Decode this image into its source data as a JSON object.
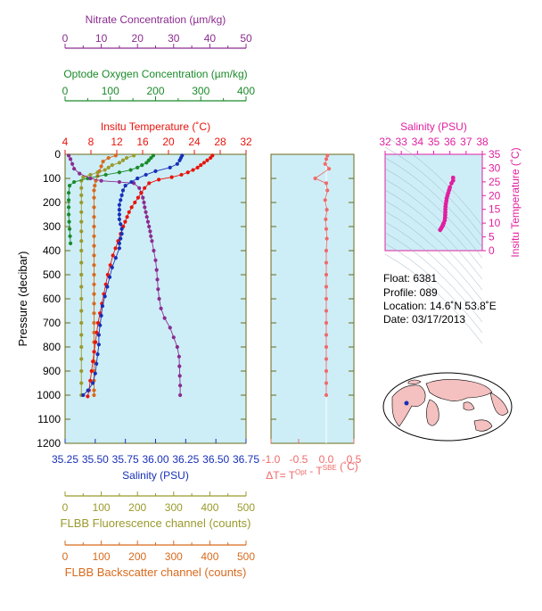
{
  "colors": {
    "nitrate": "#8b2c8f",
    "oxygen": "#1a8a2a",
    "temperature": "#e8140c",
    "salinity": "#1830b8",
    "fluorescence": "#9a9a2c",
    "backscatter": "#d86a1c",
    "delta": "#f06a6a",
    "profile_salinity": "#e020a0",
    "plot_bg": "#cdeef7",
    "frame": "#6b6b1a",
    "ocean": "#ffffff",
    "land": "#f4c0c0"
  },
  "axes": {
    "nitrate": {
      "title": "Nitrate Concentration (µm/kg)",
      "ticks": [
        "0",
        "10",
        "20",
        "30",
        "40",
        "50"
      ]
    },
    "oxygen": {
      "title": "Optode Oxygen Concentration (µm/kg)",
      "ticks": [
        "0",
        "100",
        "200",
        "300",
        "400"
      ]
    },
    "temperature": {
      "title": "Insitu Temperature (˚C)",
      "ticks": [
        "4",
        "8",
        "12",
        "16",
        "20",
        "24",
        "28",
        "32"
      ]
    },
    "pressure": {
      "title": "Pressure (decibar)",
      "ticks": [
        "0",
        "100",
        "200",
        "300",
        "400",
        "500",
        "600",
        "700",
        "800",
        "900",
        "1000",
        "1100",
        "1200"
      ]
    },
    "salinity": {
      "title": "Salinity (PSU)",
      "ticks": [
        "35.25",
        "35.50",
        "35.75",
        "36.00",
        "36.25",
        "36.50",
        "36.75"
      ]
    },
    "delta": {
      "title_main": "ΔT= T",
      "sup1": "Opt",
      "mid": " - T",
      "sup2": "SBE",
      "tail": " (˚C)",
      "ticks": [
        "-1.0",
        "-0.5",
        "0.0",
        "0.5"
      ]
    },
    "fluorescence": {
      "title": "FLBB Fluorescence channel (counts)",
      "ticks": [
        "0",
        "100",
        "200",
        "300",
        "400",
        "500"
      ]
    },
    "backscatter": {
      "title": "FLBB Backscatter channel (counts)",
      "ticks": [
        "0",
        "100",
        "200",
        "300",
        "400",
        "500"
      ]
    },
    "ts_salinity": {
      "title": "Salinity (PSU)",
      "ticks": [
        "32",
        "33",
        "34",
        "35",
        "36",
        "37",
        "38"
      ]
    },
    "ts_temperature": {
      "title": "Insitu Temperature (˚C)",
      "ticks": [
        "0",
        "5",
        "10",
        "15",
        "20",
        "25",
        "30",
        "35"
      ]
    }
  },
  "info": {
    "float": "Float:  6381",
    "profile": "Profile:  089",
    "location": "Location:  14.6˚N  53.8˚E",
    "date": "Date:  03/17/2013"
  },
  "chart_data": {
    "type": "scatter",
    "pressure_range": [
      0,
      1200
    ],
    "series": [
      {
        "name": "Insitu Temperature",
        "axis": "temperature",
        "range": [
          4,
          32
        ],
        "points": [
          [
            26.8,
            5
          ],
          [
            26.5,
            15
          ],
          [
            26.0,
            25
          ],
          [
            25.5,
            35
          ],
          [
            25.0,
            45
          ],
          [
            24.5,
            55
          ],
          [
            23.8,
            65
          ],
          [
            23.0,
            75
          ],
          [
            22.0,
            85
          ],
          [
            20.5,
            95
          ],
          [
            18.5,
            105
          ],
          [
            17.0,
            120
          ],
          [
            16.3,
            140
          ],
          [
            15.8,
            160
          ],
          [
            15.3,
            180
          ],
          [
            14.8,
            200
          ],
          [
            14.3,
            220
          ],
          [
            13.9,
            240
          ],
          [
            13.6,
            260
          ],
          [
            13.3,
            280
          ],
          [
            13.0,
            300
          ],
          [
            12.6,
            330
          ],
          [
            12.2,
            360
          ],
          [
            11.8,
            390
          ],
          [
            11.4,
            420
          ],
          [
            11.0,
            460
          ],
          [
            10.6,
            500
          ],
          [
            10.3,
            540
          ],
          [
            10.0,
            580
          ],
          [
            9.7,
            620
          ],
          [
            9.4,
            660
          ],
          [
            9.1,
            700
          ],
          [
            8.9,
            740
          ],
          [
            8.7,
            780
          ],
          [
            8.5,
            820
          ],
          [
            8.3,
            860
          ],
          [
            8.1,
            900
          ],
          [
            7.9,
            940
          ],
          [
            7.7,
            980
          ],
          [
            7.5,
            1005
          ]
        ]
      },
      {
        "name": "Salinity",
        "axis": "salinity",
        "range": [
          35.25,
          36.75
        ],
        "points": [
          [
            36.22,
            5
          ],
          [
            36.21,
            15
          ],
          [
            36.2,
            25
          ],
          [
            36.18,
            40
          ],
          [
            36.12,
            55
          ],
          [
            36.0,
            70
          ],
          [
            35.92,
            85
          ],
          [
            35.85,
            100
          ],
          [
            35.8,
            115
          ],
          [
            35.75,
            130
          ],
          [
            35.73,
            150
          ],
          [
            35.72,
            170
          ],
          [
            35.71,
            190
          ],
          [
            35.7,
            210
          ],
          [
            35.7,
            230
          ],
          [
            35.7,
            250
          ],
          [
            35.7,
            270
          ],
          [
            35.71,
            290
          ],
          [
            35.72,
            310
          ],
          [
            35.72,
            330
          ],
          [
            35.71,
            350
          ],
          [
            35.7,
            370
          ],
          [
            35.7,
            390
          ],
          [
            35.67,
            430
          ],
          [
            35.64,
            470
          ],
          [
            35.62,
            510
          ],
          [
            35.6,
            550
          ],
          [
            35.58,
            590
          ],
          [
            35.56,
            630
          ],
          [
            35.55,
            670
          ],
          [
            35.54,
            710
          ],
          [
            35.53,
            750
          ],
          [
            35.53,
            790
          ],
          [
            35.52,
            830
          ],
          [
            35.51,
            870
          ],
          [
            35.5,
            910
          ],
          [
            35.48,
            950
          ],
          [
            35.44,
            980
          ],
          [
            35.4,
            1000
          ]
        ]
      },
      {
        "name": "Nitrate",
        "axis": "nitrate",
        "range": [
          0,
          50
        ],
        "points": [
          [
            1,
            5
          ],
          [
            1.5,
            20
          ],
          [
            2,
            40
          ],
          [
            2.5,
            60
          ],
          [
            4,
            80
          ],
          [
            7,
            100
          ],
          [
            10,
            110
          ],
          [
            15,
            115
          ],
          [
            19,
            120
          ],
          [
            20.5,
            140
          ],
          [
            21,
            160
          ],
          [
            21.5,
            180
          ],
          [
            21.8,
            200
          ],
          [
            22,
            220
          ],
          [
            22.3,
            240
          ],
          [
            22.6,
            260
          ],
          [
            22.9,
            280
          ],
          [
            23.2,
            300
          ],
          [
            23.5,
            320
          ],
          [
            23.7,
            340
          ],
          [
            24,
            360
          ],
          [
            24.5,
            400
          ],
          [
            25,
            440
          ],
          [
            25.3,
            480
          ],
          [
            25.5,
            520
          ],
          [
            25.7,
            560
          ],
          [
            26,
            600
          ],
          [
            26.5,
            640
          ],
          [
            27.5,
            680
          ],
          [
            29,
            720
          ],
          [
            30,
            760
          ],
          [
            31,
            800
          ],
          [
            31.5,
            840
          ],
          [
            31.6,
            880
          ],
          [
            31.7,
            920
          ],
          [
            31.8,
            960
          ],
          [
            31.8,
            1000
          ]
        ]
      },
      {
        "name": "Oxygen",
        "axis": "oxygen",
        "range": [
          0,
          400
        ],
        "points": [
          [
            195,
            5
          ],
          [
            190,
            15
          ],
          [
            185,
            25
          ],
          [
            180,
            35
          ],
          [
            170,
            45
          ],
          [
            160,
            55
          ],
          [
            145,
            65
          ],
          [
            120,
            75
          ],
          [
            90,
            85
          ],
          [
            50,
            100
          ],
          [
            20,
            115
          ],
          [
            10,
            130
          ],
          [
            8,
            160
          ],
          [
            8,
            190
          ],
          [
            8,
            220
          ],
          [
            8,
            250
          ],
          [
            9,
            280
          ],
          [
            10,
            310
          ],
          [
            11,
            340
          ],
          [
            12,
            370
          ]
        ]
      },
      {
        "name": "Fluorescence",
        "axis": "fluorescence",
        "range": [
          0,
          500
        ],
        "points": [
          [
            190,
            5
          ],
          [
            170,
            15
          ],
          [
            160,
            25
          ],
          [
            150,
            35
          ],
          [
            130,
            45
          ],
          [
            120,
            55
          ],
          [
            110,
            65
          ],
          [
            90,
            75
          ],
          [
            70,
            85
          ],
          [
            50,
            95
          ],
          [
            45,
            110
          ],
          [
            45,
            140
          ],
          [
            45,
            170
          ],
          [
            45,
            200
          ],
          [
            45,
            240
          ],
          [
            45,
            280
          ],
          [
            45,
            320
          ],
          [
            45,
            360
          ],
          [
            45,
            400
          ],
          [
            45,
            450
          ],
          [
            45,
            500
          ],
          [
            45,
            550
          ],
          [
            45,
            600
          ],
          [
            45,
            650
          ],
          [
            45,
            700
          ],
          [
            45,
            750
          ],
          [
            45,
            800
          ],
          [
            45,
            850
          ],
          [
            45,
            900
          ],
          [
            45,
            950
          ],
          [
            45,
            1000
          ]
        ]
      },
      {
        "name": "Backscatter",
        "axis": "backscatter",
        "range": [
          0,
          500
        ],
        "points": [
          [
            140,
            5
          ],
          [
            120,
            15
          ],
          [
            105,
            30
          ],
          [
            100,
            50
          ],
          [
            95,
            70
          ],
          [
            90,
            90
          ],
          [
            85,
            110
          ],
          [
            82,
            130
          ],
          [
            80,
            150
          ],
          [
            80,
            180
          ],
          [
            80,
            220
          ],
          [
            80,
            260
          ],
          [
            80,
            300
          ],
          [
            80,
            340
          ],
          [
            80,
            380
          ],
          [
            80,
            420
          ],
          [
            80,
            460
          ],
          [
            80,
            500
          ],
          [
            80,
            540
          ],
          [
            80,
            580
          ],
          [
            80,
            620
          ],
          [
            80,
            660
          ],
          [
            80,
            700
          ],
          [
            80,
            740
          ],
          [
            80,
            780
          ],
          [
            80,
            820
          ],
          [
            80,
            860
          ],
          [
            80,
            900
          ],
          [
            80,
            940
          ],
          [
            80,
            980
          ],
          [
            80,
            1000
          ]
        ]
      },
      {
        "name": "Delta T",
        "axis": "delta",
        "range": [
          -1.0,
          0.5
        ],
        "points": [
          [
            0.02,
            5
          ],
          [
            0.0,
            20
          ],
          [
            -0.02,
            40
          ],
          [
            0.05,
            60
          ],
          [
            -0.2,
            100
          ],
          [
            0.0,
            120
          ],
          [
            0.02,
            150
          ],
          [
            -0.02,
            190
          ],
          [
            0.01,
            230
          ],
          [
            -0.01,
            270
          ],
          [
            0.0,
            310
          ],
          [
            0.01,
            350
          ],
          [
            0.0,
            400
          ],
          [
            0.0,
            450
          ],
          [
            0.0,
            500
          ],
          [
            0.0,
            550
          ],
          [
            0.0,
            600
          ],
          [
            0.0,
            650
          ],
          [
            0.0,
            700
          ],
          [
            0.0,
            750
          ],
          [
            0.0,
            800
          ],
          [
            0.0,
            850
          ],
          [
            0.0,
            900
          ],
          [
            0.0,
            950
          ],
          [
            0.0,
            1000
          ]
        ]
      },
      {
        "name": "T-S profile",
        "axis": "ts",
        "xrange": [
          32,
          38
        ],
        "yrange": [
          0,
          35
        ],
        "points": [
          [
            36.2,
            26.5
          ],
          [
            36.2,
            25.5
          ],
          [
            36.1,
            24.5
          ],
          [
            36.0,
            23.0
          ],
          [
            35.95,
            22.0
          ],
          [
            35.9,
            21.0
          ],
          [
            35.85,
            20.0
          ],
          [
            35.8,
            19.0
          ],
          [
            35.78,
            18.0
          ],
          [
            35.75,
            17.0
          ],
          [
            35.73,
            16.0
          ],
          [
            35.72,
            15.0
          ],
          [
            35.72,
            14.0
          ],
          [
            35.71,
            13.0
          ],
          [
            35.7,
            12.0
          ],
          [
            35.68,
            11.0
          ],
          [
            35.62,
            10.0
          ],
          [
            35.58,
            9.5
          ],
          [
            35.55,
            9.0
          ],
          [
            35.5,
            8.5
          ],
          [
            35.45,
            8.0
          ],
          [
            35.4,
            7.5
          ]
        ]
      }
    ]
  }
}
